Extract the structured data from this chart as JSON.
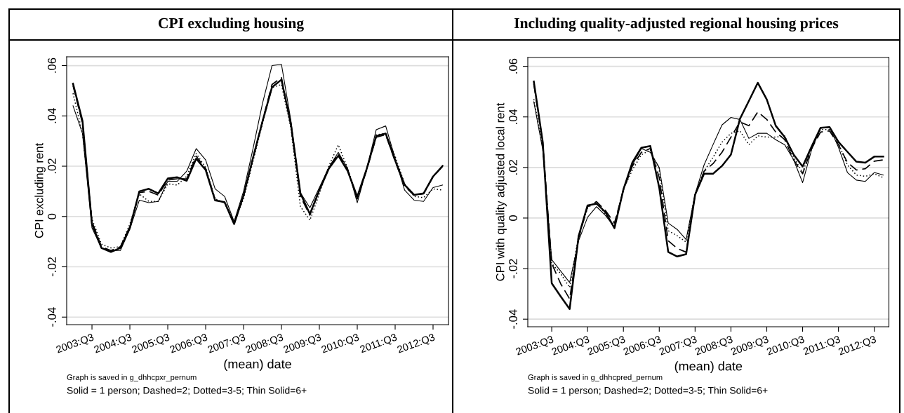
{
  "chart_data": [
    {
      "type": "line",
      "title": "CPI excluding housing",
      "xlabel": "(mean) date",
      "ylabel": "CPI excluding rent",
      "categories": [
        null,
        null,
        "2003:Q3",
        null,
        null,
        null,
        "2004:Q3",
        null,
        null,
        null,
        "2005:Q3",
        null,
        null,
        null,
        "2006:Q3",
        null,
        null,
        null,
        "2007:Q3",
        null,
        null,
        null,
        "2008:Q3",
        null,
        null,
        null,
        "2009:Q3",
        null,
        null,
        null,
        "2010:Q3",
        null,
        null,
        null,
        "2011:Q3",
        null,
        null,
        null,
        "2012:Q3",
        null
      ],
      "ylim": [
        -0.043,
        0.0635
      ],
      "yticks": [
        {
          "value": -0.04,
          "label": "-.04"
        },
        {
          "value": -0.02,
          "label": "-.02"
        },
        {
          "value": 0,
          "label": "0"
        },
        {
          "value": 0.02,
          "label": ".02"
        },
        {
          "value": 0.04,
          "label": ".04"
        },
        {
          "value": 0.06,
          "label": ".06"
        }
      ],
      "grid": "y",
      "series": [
        {
          "color": "#000000",
          "line_style": "solid",
          "values": [
            0.0528,
            0.038,
            -0.003,
            -0.0125,
            -0.0141,
            -0.0125,
            -0.0045,
            0.01,
            0.011,
            0.0092,
            0.0151,
            0.0156,
            0.0142,
            0.023,
            0.0185,
            0.0064,
            0.0057,
            -0.003,
            0.0084,
            0.0234,
            0.0378,
            0.0514,
            0.0544,
            0.0367,
            0.0092,
            0.001,
            0.0105,
            0.019,
            0.0242,
            0.018,
            0.0078,
            0.019,
            0.032,
            0.033,
            0.0223,
            0.0126,
            0.0086,
            0.0092,
            0.0159,
            0.0201
          ]
        },
        {
          "color": "#000000",
          "line_style": "dashed",
          "values": [
            0.052,
            0.037,
            -0.002,
            -0.012,
            -0.0135,
            -0.012,
            -0.004,
            0.0095,
            0.01,
            0.0085,
            0.0145,
            0.015,
            0.015,
            0.024,
            0.019,
            0.0065,
            0.0055,
            -0.003,
            0.008,
            0.023,
            0.038,
            0.0525,
            0.0552,
            0.036,
            0.008,
            0.0005,
            0.0105,
            0.0195,
            0.025,
            0.0185,
            0.007,
            0.0185,
            0.0315,
            0.0325,
            0.022,
            0.012,
            0.0085,
            0.009,
            0.0158,
            0.0198
          ]
        },
        {
          "color": "#000000",
          "line_style": "dotted",
          "values": [
            0.049,
            0.033,
            -0.001,
            -0.011,
            -0.0125,
            -0.012,
            -0.003,
            0.009,
            0.006,
            0.006,
            0.013,
            0.0125,
            0.016,
            0.025,
            0.0195,
            0.007,
            0.0055,
            -0.002,
            0.007,
            0.022,
            0.037,
            0.0512,
            0.0525,
            0.035,
            0.004,
            -0.0015,
            0.009,
            0.02,
            0.0285,
            0.019,
            0.007,
            0.019,
            0.0325,
            0.033,
            0.024,
            0.013,
            0.008,
            0.0075,
            0.011,
            0.0105
          ]
        },
        {
          "color": "#000000",
          "line_style": "solid",
          "values": [
            0.044,
            0.033,
            -0.0045,
            -0.0125,
            -0.0135,
            -0.0135,
            -0.005,
            0.0065,
            0.0055,
            0.006,
            0.014,
            0.014,
            0.018,
            0.027,
            0.0225,
            0.011,
            0.008,
            -0.002,
            0.01,
            0.027,
            0.045,
            0.06,
            0.0605,
            0.038,
            0.0095,
            0.0035,
            0.0115,
            0.0195,
            0.0255,
            0.019,
            0.0055,
            0.019,
            0.0345,
            0.036,
            0.023,
            0.0105,
            0.0065,
            0.006,
            0.0115,
            0.0125
          ]
        }
      ],
      "annotations": [
        "Graph is saved in g_dhhcpxr_pernum",
        "Solid = 1 person; Dashed=2; Dotted=3-5; Thin Solid=6+"
      ]
    },
    {
      "type": "line",
      "title": "Including quality-adjusted regional housing prices",
      "xlabel": "(mean) date",
      "ylabel": "CPI with quality adjusted local rent",
      "categories": [
        null,
        null,
        "2003:Q3",
        null,
        null,
        null,
        "2004:Q3",
        null,
        null,
        null,
        "2005:Q3",
        null,
        null,
        null,
        "2006:Q3",
        null,
        null,
        null,
        "2007:Q3",
        null,
        null,
        null,
        "2008:Q3",
        null,
        null,
        null,
        "2009:Q3",
        null,
        null,
        null,
        "2010:Q3",
        null,
        null,
        null,
        "2011:Q3",
        null,
        null,
        null,
        "2012:Q3",
        null
      ],
      "ylim": [
        -0.043,
        0.0635
      ],
      "yticks": [
        {
          "value": -0.04,
          "label": "-.04"
        },
        {
          "value": -0.02,
          "label": "-.02"
        },
        {
          "value": 0,
          "label": "0"
        },
        {
          "value": 0.02,
          "label": ".02"
        },
        {
          "value": 0.04,
          "label": ".04"
        },
        {
          "value": 0.06,
          "label": ".06"
        }
      ],
      "grid": "y",
      "series": [
        {
          "color": "#000000",
          "line_style": "solid",
          "values": [
            0.054,
            0.03,
            -0.0258,
            -0.031,
            -0.036,
            -0.0072,
            0.005,
            0.0057,
            0.0023,
            -0.004,
            0.0113,
            0.022,
            0.0278,
            0.0285,
            0.012,
            -0.0134,
            -0.0152,
            -0.0143,
            0.0092,
            0.0175,
            0.0175,
            0.0206,
            0.0251,
            0.0392,
            0.0463,
            0.0535,
            0.0469,
            0.0365,
            0.032,
            0.0251,
            0.0204,
            0.0283,
            0.0357,
            0.036,
            0.0301,
            0.0262,
            0.0223,
            0.0219,
            0.0243,
            0.0243
          ]
        },
        {
          "color": "#000000",
          "line_style": "dashed",
          "values": [
            0.053,
            0.03,
            -0.018,
            -0.026,
            -0.032,
            -0.008,
            0.0045,
            0.0065,
            0.003,
            -0.002,
            0.011,
            0.0205,
            0.026,
            0.0275,
            0.016,
            -0.009,
            -0.012,
            -0.0135,
            0.009,
            0.0185,
            0.0215,
            0.026,
            0.032,
            0.038,
            0.0365,
            0.042,
            0.039,
            0.034,
            0.031,
            0.023,
            0.0175,
            0.0275,
            0.034,
            0.0345,
            0.029,
            0.022,
            0.019,
            0.0195,
            0.0225,
            0.023
          ]
        },
        {
          "color": "#000000",
          "line_style": "dotted",
          "values": [
            0.047,
            0.028,
            -0.018,
            -0.022,
            -0.0275,
            -0.007,
            0.004,
            0.0065,
            0.0015,
            -0.003,
            0.0115,
            0.019,
            0.025,
            0.027,
            0.019,
            -0.005,
            -0.007,
            -0.0095,
            0.0095,
            0.0185,
            0.024,
            0.03,
            0.0335,
            0.0345,
            0.029,
            0.0325,
            0.032,
            0.032,
            0.0325,
            0.024,
            0.018,
            0.028,
            0.035,
            0.035,
            0.0295,
            0.021,
            0.017,
            0.0165,
            0.0175,
            0.016
          ]
        },
        {
          "color": "#000000",
          "line_style": "solid",
          "values": [
            0.046,
            0.027,
            -0.0165,
            -0.021,
            -0.0255,
            -0.009,
            0.0003,
            0.0045,
            0.001,
            -0.0035,
            0.0115,
            0.021,
            0.0275,
            0.026,
            0.02,
            -0.002,
            -0.0045,
            -0.0085,
            0.0095,
            0.021,
            0.029,
            0.0368,
            0.0398,
            0.039,
            0.0315,
            0.0335,
            0.0335,
            0.031,
            0.029,
            0.023,
            0.014,
            0.027,
            0.0355,
            0.036,
            0.028,
            0.018,
            0.015,
            0.0145,
            0.018,
            0.017
          ]
        }
      ],
      "annotations": [
        "Graph is saved in g_dhhcpred_pernum",
        "Solid = 1 person; Dashed=2; Dotted=3-5; Thin Solid=6+"
      ]
    }
  ]
}
